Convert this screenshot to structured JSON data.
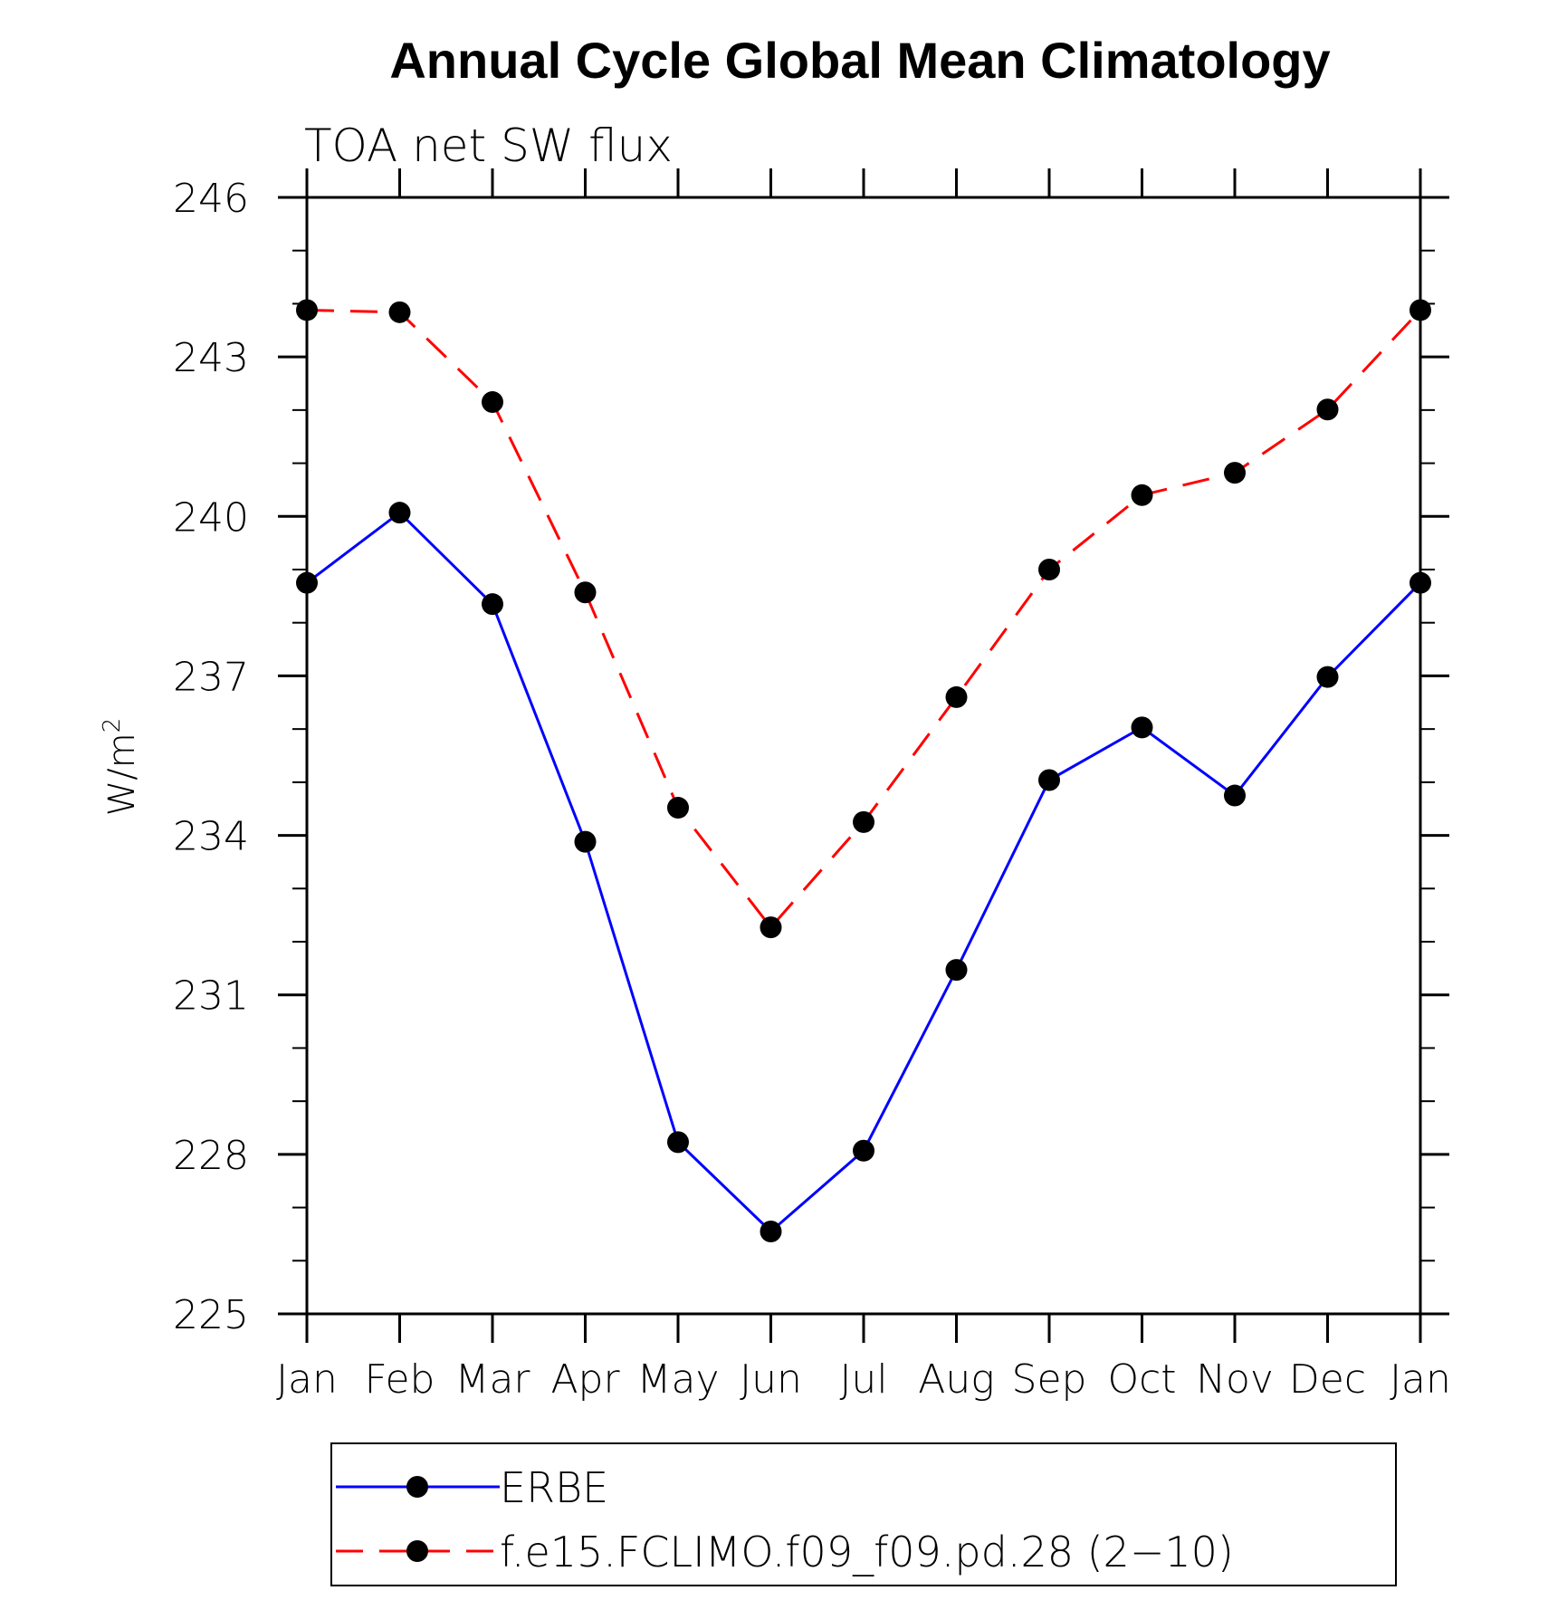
{
  "chart_data": {
    "type": "line",
    "title": "Annual Cycle Global Mean Climatology",
    "subtitle": "TOA net SW flux",
    "xlabel": "",
    "ylabel_base": "W/m",
    "ylabel_sup": "2",
    "categories": [
      "Jan",
      "Feb",
      "Mar",
      "Apr",
      "May",
      "Jun",
      "Jul",
      "Aug",
      "Sep",
      "Oct",
      "Nov",
      "Dec",
      "Jan"
    ],
    "ylim": [
      225,
      246
    ],
    "yticks": [
      "225",
      "228",
      "231",
      "234",
      "237",
      "240",
      "243",
      "246"
    ],
    "ytick_values": [
      225,
      228,
      231,
      234,
      237,
      240,
      243,
      246
    ],
    "grid": false,
    "legend_position": "bottom",
    "series": [
      {
        "name": "ERBE",
        "color": "#0000ff",
        "dash": "solid",
        "marker": "filled-circle",
        "values": [
          238.75,
          240.07,
          238.35,
          233.88,
          228.23,
          226.55,
          228.07,
          231.47,
          235.04,
          236.03,
          234.75,
          236.98,
          238.75
        ]
      },
      {
        "name": "f.e15.FCLIMO.f09_f09.pd.28 (2−10)",
        "color": "#ff0000",
        "dash": "dashed",
        "marker": "filled-circle",
        "values": [
          243.88,
          243.84,
          242.15,
          238.57,
          234.52,
          232.27,
          234.25,
          236.6,
          239.0,
          240.4,
          240.82,
          242.01,
          243.88
        ]
      }
    ]
  }
}
